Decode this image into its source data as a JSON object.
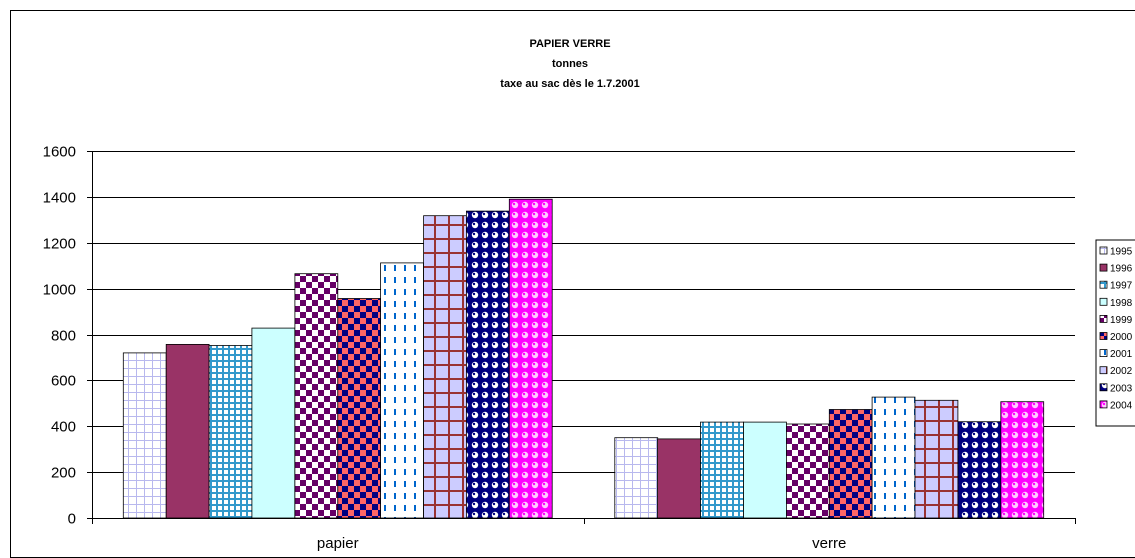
{
  "chart_data": {
    "type": "bar",
    "title": [
      "PAPIER VERRE",
      "tonnes",
      "taxe au sac dès le 1.7.2001"
    ],
    "categories": [
      "papier",
      "verre"
    ],
    "ylim": [
      0,
      1600
    ],
    "yticks": [
      0,
      200,
      400,
      600,
      800,
      1000,
      1200,
      1400,
      1600
    ],
    "grid": true,
    "legend_position": "right",
    "series": [
      {
        "name": "1995",
        "values": [
          720,
          350
        ],
        "color": "#c0c0ff",
        "pattern": "grid-light"
      },
      {
        "name": "1996",
        "values": [
          757,
          345
        ],
        "color": "#993366",
        "pattern": "solid"
      },
      {
        "name": "1997",
        "values": [
          752,
          418
        ],
        "color": "#3399cc",
        "pattern": "grid-blue"
      },
      {
        "name": "1998",
        "values": [
          828,
          418
        ],
        "color": "#ccffff",
        "pattern": "solid"
      },
      {
        "name": "1999",
        "values": [
          1065,
          410
        ],
        "color": "#660066",
        "pattern": "checker-purple"
      },
      {
        "name": "2000",
        "values": [
          957,
          473
        ],
        "color": "#ff6666",
        "pattern": "checker-red"
      },
      {
        "name": "2001",
        "values": [
          1112,
          527
        ],
        "color": "#0066cc",
        "pattern": "dash-blue"
      },
      {
        "name": "2002",
        "values": [
          1318,
          513
        ],
        "color": "#ccccff",
        "pattern": "grid-maroon"
      },
      {
        "name": "2003",
        "values": [
          1338,
          420
        ],
        "color": "#000080",
        "pattern": "dots-navy"
      },
      {
        "name": "2004",
        "values": [
          1390,
          507
        ],
        "color": "#ff00ff",
        "pattern": "dots-magenta"
      }
    ]
  }
}
